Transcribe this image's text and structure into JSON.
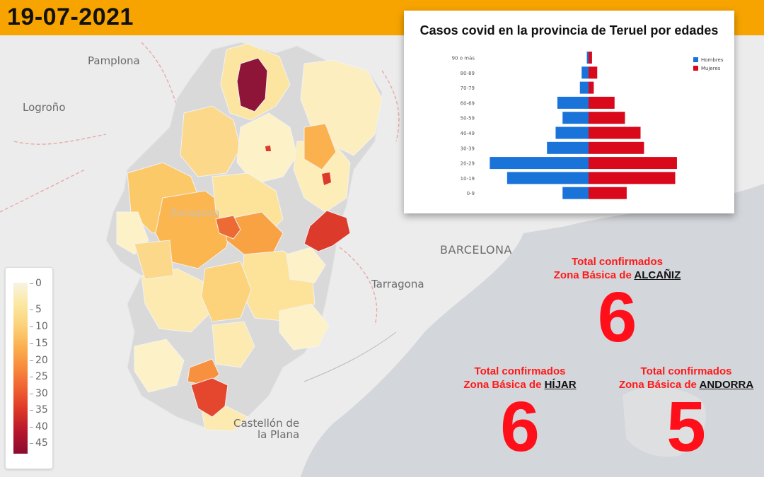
{
  "date": "19-07-2021",
  "map": {
    "cities": {
      "pamplona": "Pamplona",
      "logrono": "Logroño",
      "zaragoza": "Zaragoza",
      "barcelona": "BARCELONA",
      "tarragona": "Tarragona",
      "castellon_1": "Castellón de",
      "castellon_2": "la Plana"
    },
    "legend": {
      "ticks": [
        "0",
        "5",
        "10",
        "15",
        "20",
        "25",
        "30",
        "35",
        "40",
        "45"
      ],
      "colors": [
        "#f7f3e1",
        "#fbe8a3",
        "#fcd27a",
        "#fbb04f",
        "#f78a3c",
        "#ef5f32",
        "#db3527",
        "#b5162b",
        "#8c0b2f"
      ]
    }
  },
  "chart": {
    "title": "Casos covid en la provincia de Teruel por edades",
    "chart_data": {
      "type": "bar",
      "orientation": "horizontal-pyramid",
      "categories": [
        "90 o más",
        "80-89",
        "70-79",
        "60-69",
        "50-59",
        "40-49",
        "30-39",
        "20-29",
        "10-19",
        "0-9"
      ],
      "series": [
        {
          "name": "Hombres",
          "color": "#1a73d9",
          "values": [
            1,
            4,
            5,
            18,
            15,
            19,
            24,
            57,
            47,
            15
          ]
        },
        {
          "name": "Mujeres",
          "color": "#d9081b",
          "values": [
            2,
            5,
            3,
            15,
            21,
            30,
            32,
            51,
            50,
            22
          ]
        }
      ],
      "legend": "top-right",
      "grid": false
    }
  },
  "stats": [
    {
      "line1": "Total confirmados",
      "prefix": "Zona Básica de",
      "zone": "ALCAÑIZ",
      "value": "6"
    },
    {
      "line1": "Total confirmados",
      "prefix": "Zona Básica de",
      "zone": "HÍJAR",
      "value": "6"
    },
    {
      "line1": "Total confirmados",
      "prefix": "Zona Básica de",
      "zone": "ANDORRA",
      "value": "5"
    }
  ]
}
